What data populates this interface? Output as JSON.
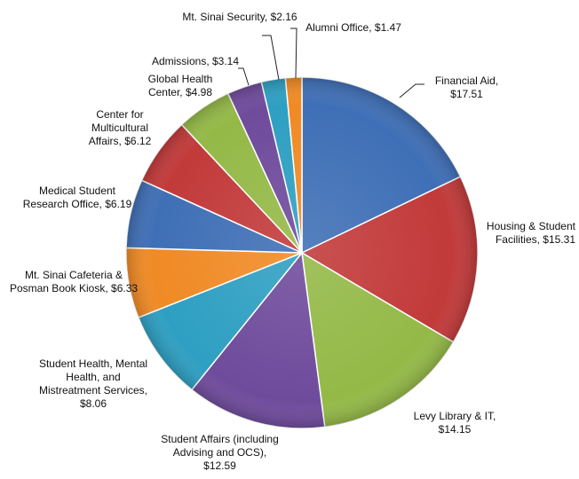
{
  "chart_data": {
    "type": "pie",
    "categories": [
      "Financial Aid,",
      "Housing & Student Facilities,",
      "Levy Library & IT,",
      "Student Affairs (including Advising and OCS),",
      "Student Health, Mental Health, and Mistreatment Services,",
      "Mt. Sinai Cafeteria & Posman Book Kiosk,",
      "Medical Student Research Office,",
      "Center for Multicultural Affairs,",
      "Global Health Center,",
      "Admissions,",
      "Mt. Sinai Security,",
      "Alumni Office,"
    ],
    "values": [
      17.51,
      15.31,
      14.15,
      12.59,
      8.06,
      6.33,
      6.19,
      6.12,
      4.98,
      3.14,
      2.16,
      1.47
    ],
    "value_labels": [
      "$17.51",
      "$15.31",
      "$14.15",
      "$12.59",
      "$8.06",
      "$6.33",
      "$6.19",
      "$6.12",
      "$4.98",
      "$3.14",
      "$2.16",
      "$1.47"
    ],
    "colors": [
      "#3f6fb6",
      "#c23a3a",
      "#94b947",
      "#6f4b9c",
      "#2e9fc2",
      "#f08a25",
      "#3f6fb6",
      "#c23a3a",
      "#94b947",
      "#6f4b9c",
      "#2e9fc2",
      "#f08a25"
    ]
  }
}
